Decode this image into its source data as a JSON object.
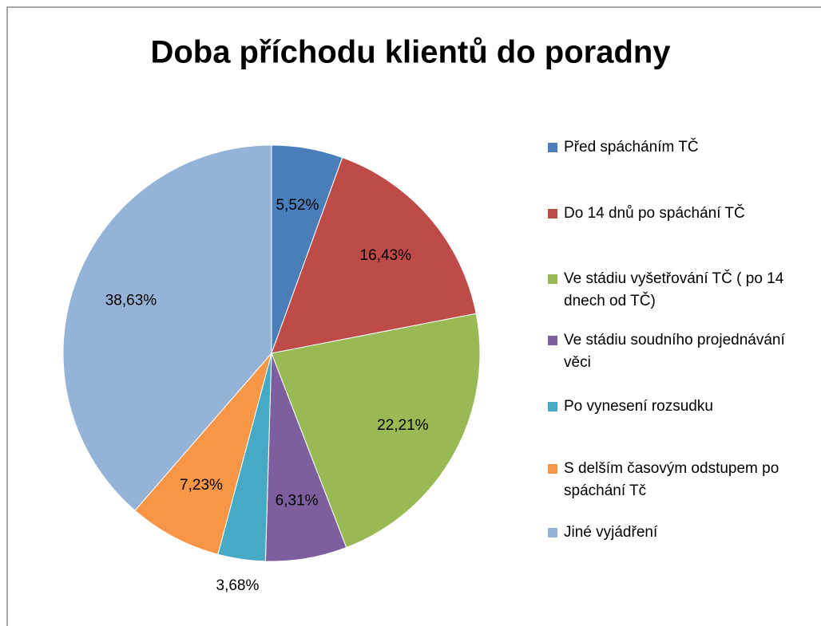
{
  "chart_data": {
    "type": "pie",
    "title": "Doba příchodu klientů do poradny",
    "categories": [
      "Před spácháním TČ",
      "Do 14 dnů po spáchání TČ",
      "Ve stádiu vyšetřování TČ ( po 14 dnech od TČ)",
      "Ve stádiu soudního projednávání věci",
      "Po vynesení rozsudku",
      "S delším časovým odstupem po spáchání Tč",
      "Jiné vyjádření"
    ],
    "values": [
      5.52,
      16.43,
      22.21,
      6.31,
      3.68,
      7.23,
      38.63
    ],
    "value_labels": [
      "5,52%",
      "16,43%",
      "22,21%",
      "6,31%",
      "3,68%",
      "7,23%",
      "38,63%"
    ],
    "colors": [
      "#4a7ebb",
      "#be4b48",
      "#98b954",
      "#7d5fa0",
      "#46aac5",
      "#f79646",
      "#95b3d7"
    ],
    "legend": "right"
  }
}
